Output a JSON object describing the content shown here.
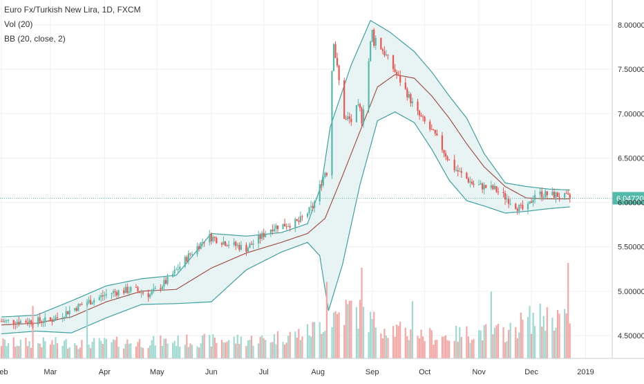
{
  "legend": {
    "symbol": "Euro Fx/Turkish New Lira, 1D, FXCM",
    "volume": "Vol (20)",
    "bollinger": "BB (20, close, 2)"
  },
  "colors": {
    "up": "#53b9a9",
    "down": "#ef5350",
    "basis": "#a0524a",
    "band": "#3f9f9f",
    "band_fill": "#e8f4f4",
    "vol_up": "#9fd9d1",
    "vol_down": "#f4a8a6",
    "axis_text": "#333333",
    "grid": "#eef0f2"
  },
  "chart_data": {
    "type": "candlestick",
    "price_axis": {
      "ticks": [
        "8.00000",
        "7.50000",
        "7.00000",
        "6.50000",
        "6.00000",
        "5.50000",
        "5.00000",
        "4.50000"
      ],
      "tick_values": [
        8.0,
        7.5,
        7.0,
        6.5,
        6.0,
        5.5,
        5.0,
        4.5
      ],
      "range": [
        4.32,
        8.05
      ],
      "last_price_label": "6.04720",
      "last_price": 6.0472
    },
    "time_axis": {
      "labels": [
        "Feb",
        "Mar",
        "Apr",
        "May",
        "Jun",
        "Jul",
        "Aug",
        "Sep",
        "Oct",
        "Nov",
        "Dec",
        "2019"
      ],
      "label_days": [
        0,
        28,
        59,
        89,
        120,
        150,
        181,
        212,
        242,
        273,
        303,
        334
      ],
      "range_days": [
        0,
        333
      ]
    },
    "close_anchors": [
      [
        0,
        4.66
      ],
      [
        15,
        4.66
      ],
      [
        28,
        4.67
      ],
      [
        45,
        4.84
      ],
      [
        62,
        4.98
      ],
      [
        75,
        5.02
      ],
      [
        85,
        4.96
      ],
      [
        95,
        5.12
      ],
      [
        108,
        5.42
      ],
      [
        118,
        5.62
      ],
      [
        128,
        5.55
      ],
      [
        140,
        5.48
      ],
      [
        155,
        5.72
      ],
      [
        170,
        5.78
      ],
      [
        178,
        5.95
      ],
      [
        186,
        6.4
      ],
      [
        190,
        7.9
      ],
      [
        192,
        7.45
      ],
      [
        197,
        6.9
      ],
      [
        206,
        7.0
      ],
      [
        212,
        7.9
      ],
      [
        220,
        7.65
      ],
      [
        230,
        7.3
      ],
      [
        238,
        7.0
      ],
      [
        248,
        6.75
      ],
      [
        258,
        6.4
      ],
      [
        270,
        6.2
      ],
      [
        282,
        6.15
      ],
      [
        295,
        5.95
      ],
      [
        300,
        5.9
      ],
      [
        305,
        6.1
      ],
      [
        318,
        6.08
      ],
      [
        325,
        6.05
      ]
    ],
    "bollinger": {
      "length": 20,
      "source": "close",
      "stddev": 2,
      "upper_anchors": [
        [
          0,
          4.71
        ],
        [
          20,
          4.73
        ],
        [
          40,
          4.89
        ],
        [
          60,
          5.06
        ],
        [
          80,
          5.14
        ],
        [
          100,
          5.18
        ],
        [
          120,
          5.65
        ],
        [
          140,
          5.62
        ],
        [
          160,
          5.66
        ],
        [
          175,
          5.76
        ],
        [
          183,
          6.2
        ],
        [
          188,
          6.85
        ],
        [
          200,
          7.55
        ],
        [
          211,
          8.05
        ],
        [
          222,
          7.92
        ],
        [
          236,
          7.7
        ],
        [
          246,
          7.47
        ],
        [
          256,
          7.2
        ],
        [
          266,
          6.95
        ],
        [
          276,
          6.55
        ],
        [
          288,
          6.22
        ],
        [
          300,
          6.18
        ],
        [
          313,
          6.15
        ],
        [
          325,
          6.14
        ]
      ],
      "basis_anchors": [
        [
          0,
          4.62
        ],
        [
          20,
          4.64
        ],
        [
          40,
          4.71
        ],
        [
          60,
          4.88
        ],
        [
          80,
          5.0
        ],
        [
          100,
          5.02
        ],
        [
          120,
          5.26
        ],
        [
          140,
          5.43
        ],
        [
          160,
          5.55
        ],
        [
          175,
          5.65
        ],
        [
          185,
          5.82
        ],
        [
          195,
          6.3
        ],
        [
          205,
          6.8
        ],
        [
          215,
          7.3
        ],
        [
          225,
          7.44
        ],
        [
          236,
          7.4
        ],
        [
          246,
          7.2
        ],
        [
          256,
          6.95
        ],
        [
          266,
          6.66
        ],
        [
          276,
          6.4
        ],
        [
          288,
          6.18
        ],
        [
          300,
          6.05
        ],
        [
          313,
          6.04
        ],
        [
          325,
          6.04
        ]
      ],
      "lower_anchors": [
        [
          0,
          4.52
        ],
        [
          20,
          4.55
        ],
        [
          40,
          4.53
        ],
        [
          60,
          4.7
        ],
        [
          80,
          4.85
        ],
        [
          100,
          4.86
        ],
        [
          120,
          4.88
        ],
        [
          140,
          5.24
        ],
        [
          160,
          5.44
        ],
        [
          175,
          5.55
        ],
        [
          182,
          5.4
        ],
        [
          187,
          4.78
        ],
        [
          195,
          5.3
        ],
        [
          205,
          6.2
        ],
        [
          215,
          6.92
        ],
        [
          225,
          7.02
        ],
        [
          236,
          6.9
        ],
        [
          246,
          6.6
        ],
        [
          256,
          6.25
        ],
        [
          266,
          6.02
        ],
        [
          276,
          5.96
        ],
        [
          288,
          5.88
        ],
        [
          300,
          5.9
        ],
        [
          313,
          5.93
        ],
        [
          325,
          5.95
        ]
      ]
    },
    "volume": {
      "max_label_value": 1.0,
      "anchors": [
        [
          0,
          0.18
        ],
        [
          60,
          0.18
        ],
        [
          100,
          0.2
        ],
        [
          150,
          0.22
        ],
        [
          175,
          0.3
        ],
        [
          181,
          0.38
        ],
        [
          190,
          0.5
        ],
        [
          200,
          0.58
        ],
        [
          212,
          0.42
        ],
        [
          230,
          0.3
        ],
        [
          250,
          0.25
        ],
        [
          270,
          0.3
        ],
        [
          290,
          0.3
        ],
        [
          300,
          0.45
        ],
        [
          320,
          0.5
        ],
        [
          325,
          0.35
        ]
      ],
      "spikes": [
        [
          18,
          0.55
        ],
        [
          49,
          0.6
        ],
        [
          186,
          0.8
        ],
        [
          206,
          0.95
        ],
        [
          235,
          0.6
        ],
        [
          280,
          0.7
        ],
        [
          324,
          1.0
        ],
        [
          321,
          0.75
        ]
      ]
    }
  }
}
